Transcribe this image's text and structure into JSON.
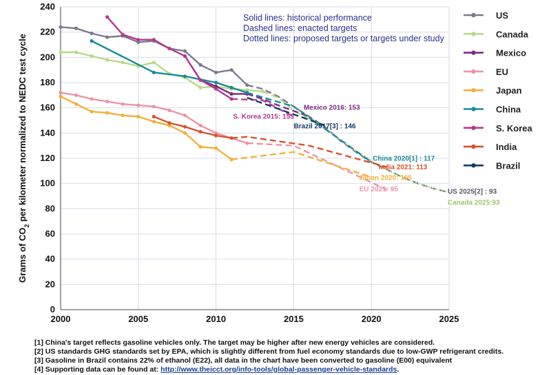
{
  "chart_data": {
    "type": "line",
    "ylabel": "Grams of CO2 per kilometer normalized to NEDC test cycle",
    "ylabel_pre": "Grams of CO",
    "ylabel_sub": "2",
    "ylabel_post": " per kilometer normalized to NEDC test cycle",
    "xlim": [
      2000,
      2025
    ],
    "ylim": [
      0,
      240
    ],
    "x_ticks": [
      "2000",
      "2005",
      "2010",
      "2015",
      "2020",
      "2025"
    ],
    "y_ticks": [
      "0",
      "20",
      "40",
      "60",
      "80",
      "100",
      "120",
      "140",
      "160",
      "180",
      "200",
      "220",
      "240"
    ],
    "notes": [
      "Solid lines: historical performance",
      "Dashed lines: enacted targets",
      "Dotted lines: proposed targets or targets under study"
    ],
    "series": [
      {
        "name": "US",
        "color": "#7a7a8c",
        "historical": [
          [
            2000,
            224
          ],
          [
            2001,
            223
          ],
          [
            2002,
            219
          ],
          [
            2003,
            216
          ],
          [
            2004,
            217
          ],
          [
            2005,
            212
          ],
          [
            2006,
            213
          ],
          [
            2007,
            207
          ],
          [
            2008,
            205
          ],
          [
            2009,
            194
          ],
          [
            2010,
            188
          ],
          [
            2011,
            190
          ],
          [
            2012,
            178
          ]
        ],
        "enacted": [
          [
            2013,
            175
          ],
          [
            2014,
            169
          ],
          [
            2015,
            161
          ],
          [
            2016,
            153
          ],
          [
            2017,
            145
          ],
          [
            2018,
            134
          ],
          [
            2019,
            125
          ],
          [
            2020,
            117
          ],
          [
            2021,
            111
          ],
          [
            2022,
            105
          ],
          [
            2023,
            100
          ],
          [
            2024,
            96
          ],
          [
            2025,
            93
          ]
        ],
        "proposed": []
      },
      {
        "name": "Canada",
        "color": "#b7d98a",
        "historical": [
          [
            2000,
            204
          ],
          [
            2001,
            204
          ],
          [
            2002,
            201
          ],
          [
            2003,
            198
          ],
          [
            2004,
            196
          ],
          [
            2005,
            193
          ],
          [
            2006,
            196
          ],
          [
            2007,
            187
          ],
          [
            2008,
            184
          ],
          [
            2009,
            176
          ],
          [
            2010,
            177
          ],
          [
            2011,
            175
          ],
          [
            2012,
            174
          ],
          [
            2013,
            173
          ]
        ],
        "enacted": [
          [
            2014,
            168
          ],
          [
            2015,
            158
          ],
          [
            2016,
            151
          ]
        ],
        "proposed": [
          [
            2017,
            144
          ],
          [
            2018,
            135
          ],
          [
            2019,
            126
          ],
          [
            2020,
            118
          ],
          [
            2021,
            111
          ],
          [
            2022,
            105
          ],
          [
            2023,
            100
          ],
          [
            2024,
            96
          ],
          [
            2025,
            93
          ]
        ]
      },
      {
        "name": "Mexico",
        "color": "#7b2d82",
        "historical": [
          [
            2008,
            201
          ],
          [
            2009,
            182
          ],
          [
            2010,
            177
          ],
          [
            2011,
            171
          ],
          [
            2012,
            171
          ]
        ],
        "enacted": [
          [
            2013,
            167
          ],
          [
            2014,
            162
          ],
          [
            2016,
            153
          ]
        ],
        "proposed": []
      },
      {
        "name": "EU",
        "color": "#eb94a6",
        "historical": [
          [
            2000,
            172
          ],
          [
            2001,
            170
          ],
          [
            2002,
            167
          ],
          [
            2003,
            165
          ],
          [
            2004,
            163
          ],
          [
            2005,
            162
          ],
          [
            2006,
            161
          ],
          [
            2007,
            158
          ],
          [
            2008,
            154
          ],
          [
            2009,
            146
          ],
          [
            2010,
            140
          ],
          [
            2011,
            136
          ],
          [
            2012,
            132
          ]
        ],
        "enacted": [
          [
            2015,
            130
          ],
          [
            2021,
            95
          ]
        ],
        "proposed": []
      },
      {
        "name": "Japan",
        "color": "#f2b03c",
        "historical": [
          [
            2000,
            169
          ],
          [
            2001,
            163
          ],
          [
            2002,
            157
          ],
          [
            2003,
            156
          ],
          [
            2004,
            154
          ],
          [
            2005,
            153
          ],
          [
            2006,
            149
          ],
          [
            2007,
            146
          ],
          [
            2008,
            140
          ],
          [
            2009,
            129
          ],
          [
            2010,
            128
          ],
          [
            2011,
            119
          ]
        ],
        "enacted": [
          [
            2015,
            125
          ],
          [
            2020,
            105
          ]
        ],
        "proposed": []
      },
      {
        "name": "China",
        "color": "#1a8a96",
        "historical": [
          [
            2002,
            213
          ],
          [
            2006,
            188
          ],
          [
            2008,
            185
          ],
          [
            2010,
            180
          ],
          [
            2011,
            176
          ],
          [
            2012,
            172
          ]
        ],
        "enacted": [
          [
            2015,
            161
          ],
          [
            2020,
            117
          ]
        ],
        "proposed": []
      },
      {
        "name": "S. Korea",
        "color": "#b23a8f",
        "historical": [
          [
            2003,
            232
          ],
          [
            2004,
            218
          ],
          [
            2005,
            214
          ],
          [
            2006,
            214
          ],
          [
            2007,
            207
          ],
          [
            2008,
            201
          ],
          [
            2009,
            182
          ],
          [
            2010,
            175
          ],
          [
            2011,
            167
          ]
        ],
        "enacted": [
          [
            2013,
            166
          ],
          [
            2015,
            153
          ]
        ],
        "proposed": []
      },
      {
        "name": "India",
        "color": "#d5532f",
        "historical": [
          [
            2006,
            153
          ],
          [
            2007,
            148
          ],
          [
            2008,
            145
          ],
          [
            2009,
            141
          ],
          [
            2010,
            138
          ],
          [
            2011,
            136
          ]
        ],
        "enacted": [
          [
            2012,
            137
          ],
          [
            2016,
            130
          ],
          [
            2021,
            113
          ]
        ],
        "proposed": []
      },
      {
        "name": "Brazil",
        "color": "#163a66",
        "historical": [],
        "enacted": [
          [
            2012,
            168
          ],
          [
            2017,
            146
          ]
        ],
        "proposed": []
      }
    ],
    "annotations": [
      {
        "label": "Mexico 2016: 153",
        "color": "#7b2d82",
        "x": 2016,
        "y": 153
      },
      {
        "label": "S. Korea 2015: 153",
        "color": "#b23a8f",
        "x": 2015,
        "y": 153
      },
      {
        "label": "Brazil 2017[3] : 146",
        "color": "#163a66",
        "x": 2017,
        "y": 146
      },
      {
        "label": "China 2020[1] : 117",
        "color": "#1a8a96",
        "x": 2020,
        "y": 117
      },
      {
        "label": "India 2021: 113",
        "color": "#d5532f",
        "x": 2021,
        "y": 113
      },
      {
        "label": "Japan 2020: 105",
        "color": "#f2b03c",
        "x": 2020,
        "y": 105
      },
      {
        "label": "EU 2021: 95",
        "color": "#eb94a6",
        "x": 2021,
        "y": 95
      },
      {
        "label": "US 2025[2] : 93",
        "color": "#555566",
        "x": 2025,
        "y": 93
      },
      {
        "label": "Canada 2025:93",
        "color": "#9cc76a",
        "x": 2025,
        "y": 93
      }
    ]
  },
  "footnotes": {
    "f1": "[1] China's target reflects gasoline vehicles only. The target may be higher after new energy vehicles are considered.",
    "f2": "[2] US standards GHG standards set by EPA, which is slightly different from fuel economy standards due to low-GWP refrigerant credits.",
    "f3": "[3] Gasoline in Brazil contains 22% of ethanol (E22), all data in the chart have been converted to gasoline (E00) equivalent",
    "f4_prefix": "[4] Supporting data can be found at: ",
    "f4_link": "http://www.theicct.org/info-tools/global-passenger-vehicle-standards",
    "f4_suffix": "."
  }
}
